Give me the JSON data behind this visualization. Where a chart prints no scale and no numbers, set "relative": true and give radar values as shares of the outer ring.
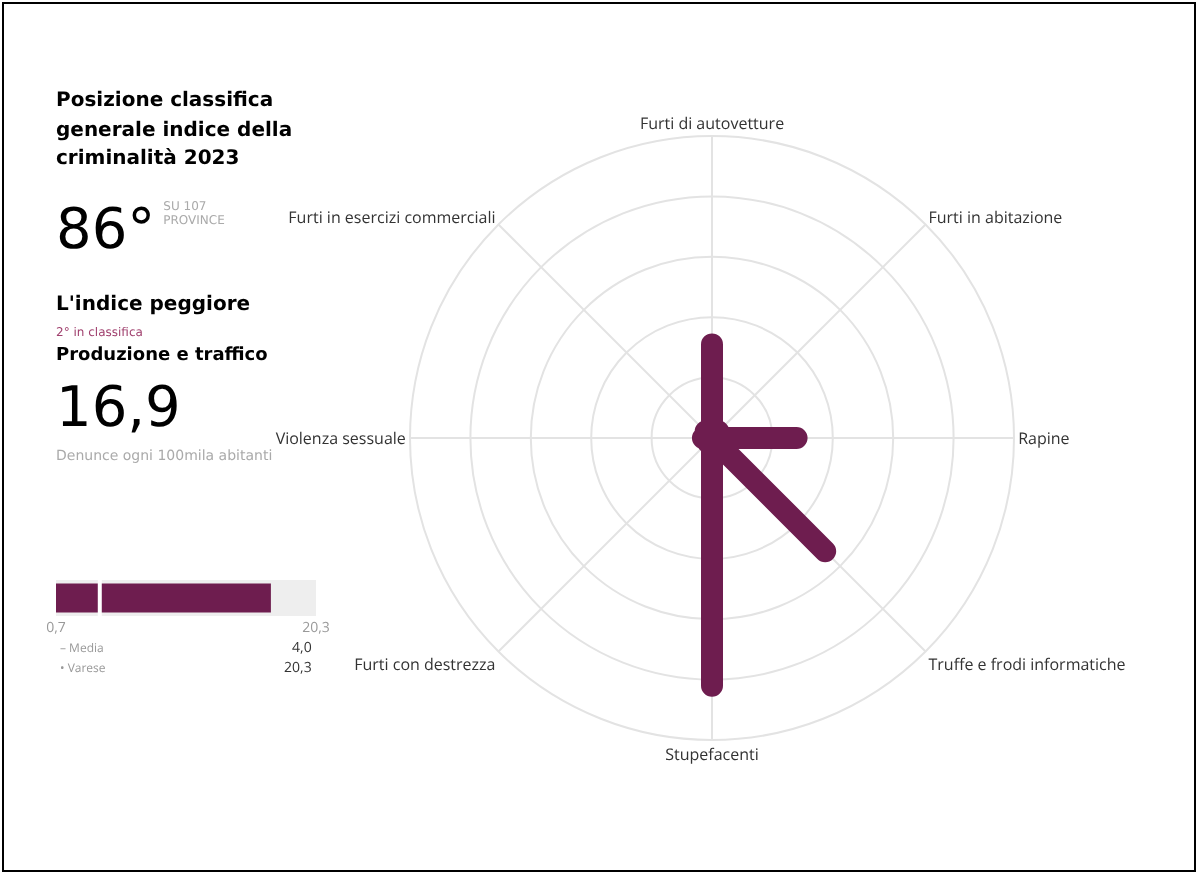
{
  "chart_data": [
    {
      "type": "other",
      "title": "Posizione classifica generale indice della criminalità 2023",
      "annotations": [
        "86°",
        "SU 107 PROVINCE",
        "L'indice peggiore",
        "2° in classifica",
        "Produzione e traffico",
        "16,9",
        "Denunce ogni 100mila abitanti"
      ]
    },
    {
      "type": "bar",
      "orientation": "horizontal",
      "categories": [
        null
      ],
      "values": [
        16.9
      ],
      "color": "#6e1d4f",
      "xlim": [
        0.7,
        20.3
      ],
      "xticks": [
        {
          "value": 0.7,
          "label": "0,7"
        },
        {
          "value": 20.3,
          "label": "20,3"
        }
      ],
      "ref_lines": [
        {
          "axis": "x",
          "value": 4.0,
          "color": "#ffffff"
        }
      ],
      "annotations": [
        "– Media",
        "4,0",
        "• Varese",
        "20,3"
      ]
    },
    {
      "type": "radar",
      "relative": true,
      "categories": [
        "Furti di autovetture",
        "Furti in abitazione",
        "Rapine",
        "Truffe e frodi informatiche",
        "Stupefacenti",
        "Furti con destrezza",
        "Violenza sessuale",
        "Furti in esercizi commerciali"
      ],
      "series": [
        {
          "color": "#6e1d4f",
          "values": [
            0.31,
            0.03,
            0.28,
            0.53,
            0.82,
            0.02,
            0.03,
            0.03
          ]
        }
      ]
    }
  ]
}
